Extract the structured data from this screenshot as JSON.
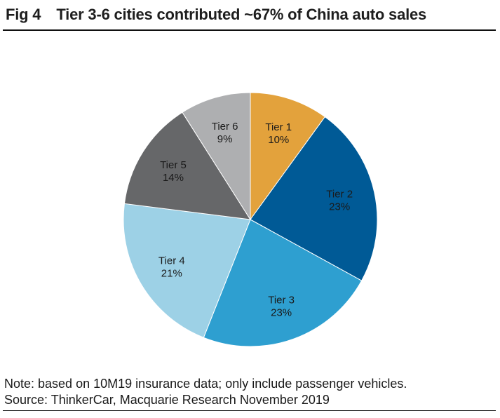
{
  "title": {
    "fig_label": "Fig 4",
    "text": "Tier 3-6 cities contributed ~67% of China auto sales"
  },
  "chart_data": {
    "type": "pie",
    "title": "Tier 3-6 cities contributed ~67% of China auto sales",
    "start_angle": "12 o'clock",
    "direction": "clockwise",
    "slices": [
      {
        "label": "Tier 1",
        "value": 10,
        "value_label": "10%",
        "color": "#E3A23C"
      },
      {
        "label": "Tier 2",
        "value": 23,
        "value_label": "23%",
        "color": "#005A96"
      },
      {
        "label": "Tier 3",
        "value": 23,
        "value_label": "23%",
        "color": "#2E9FD0"
      },
      {
        "label": "Tier 4",
        "value": 21,
        "value_label": "21%",
        "color": "#9DD1E6"
      },
      {
        "label": "Tier 5",
        "value": 14,
        "value_label": "14%",
        "color": "#666769"
      },
      {
        "label": "Tier 6",
        "value": 9,
        "value_label": "9%",
        "color": "#AEAFB1"
      }
    ],
    "legend": "none",
    "unit": "%"
  },
  "footer": {
    "note": "Note: based on 10M19 insurance data; only include passenger vehicles.",
    "source": "Source: ThinkerCar, Macquarie Research November 2019"
  }
}
